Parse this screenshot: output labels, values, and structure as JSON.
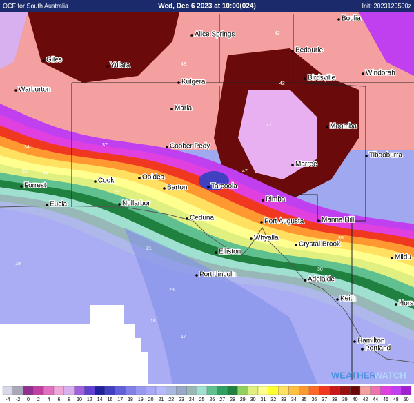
{
  "header": {
    "product": "OCF  for South Australia",
    "valid_time": "Wed, Dec 6 2023 at 10:00(024)",
    "init": "Init: 2023120500z"
  },
  "places": [
    "Boulia",
    "Alice Springs",
    "Bedourie",
    "Giles",
    "Yulara",
    "Windorah",
    "Birdsville",
    "Kulgera",
    "Warburton",
    "Marla",
    "Moomba",
    "Coober Pedy",
    "Tibooburra",
    "Marree",
    "Ooldea",
    "Cook",
    "Barton",
    "Tarcoola",
    "Forrest",
    "Pimba",
    "Nullarbor",
    "Eucla",
    "Ceduna",
    "Port Augusta",
    "Manna Hill",
    "Whyalla",
    "Crystal Brook",
    "Elliston",
    "Mildu",
    "Port Lincoln",
    "Adelaide",
    "Keith",
    "Hors",
    "Hamilton",
    "Portland"
  ],
  "contour_labels": [
    "42",
    "43",
    "42",
    "47",
    "47",
    "33",
    "34",
    "31",
    "37",
    "28",
    "21",
    "19",
    "17",
    "18",
    "23",
    "30",
    "39"
  ],
  "watermark": [
    "WEATHER",
    "WATCH"
  ],
  "legend": {
    "values": [
      -4,
      -2,
      0,
      2,
      4,
      6,
      8,
      10,
      12,
      14,
      16,
      17,
      18,
      19,
      20,
      21,
      22,
      23,
      24,
      25,
      26,
      27,
      28,
      29,
      30,
      31,
      32,
      33,
      34,
      35,
      36,
      37,
      38,
      39,
      40,
      42,
      44,
      46,
      48,
      50
    ],
    "colors": [
      "#d8d8e8",
      "#a8a8b8",
      "#903090",
      "#c040a0",
      "#e070c0",
      "#f0a8d8",
      "#d8b0f0",
      "#a060e0",
      "#6040d0",
      "#2020a0",
      "#4040c0",
      "#6060d8",
      "#8080e8",
      "#9898f0",
      "#a8a8f8",
      "#b8b8ff",
      "#a8b8e0",
      "#98a8c8",
      "#98b8b8",
      "#a0e0d0",
      "#60c090",
      "#30a060",
      "#208040",
      "#90d060",
      "#e0f080",
      "#ffff90",
      "#ffff30",
      "#ffe060",
      "#ffc040",
      "#ff9830",
      "#ff6828",
      "#f03820",
      "#c81818",
      "#981010",
      "#680808",
      "#f4a0a0",
      "#f070b0",
      "#e040e0",
      "#c040f0",
      "#a020d0"
    ]
  }
}
